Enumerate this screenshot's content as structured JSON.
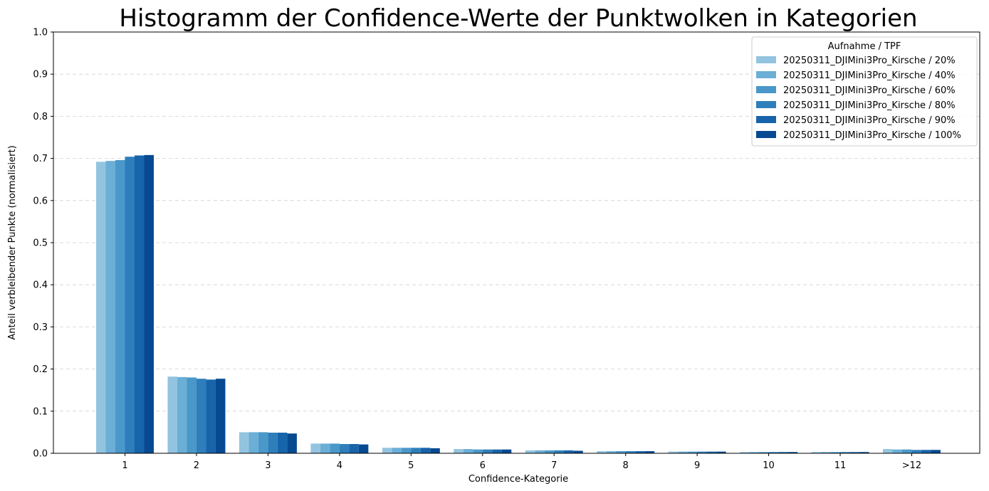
{
  "chart_data": {
    "type": "bar",
    "title": "Histogramm der Confidence-Werte der Punktwolken in Kategorien",
    "xlabel": "Confidence-Kategorie",
    "ylabel": "Anteil verbleibender Punkte (normalisiert)",
    "ylim": [
      0,
      1.0
    ],
    "yticks": [
      "0.0",
      "0.1",
      "0.2",
      "0.3",
      "0.4",
      "0.5",
      "0.6",
      "0.7",
      "0.8",
      "0.9",
      "1.0"
    ],
    "grid": "y-dashed",
    "legend": {
      "title": "Aufnahme / TPF",
      "placement": "top-right"
    },
    "categories": [
      "1",
      "2",
      "3",
      "4",
      "5",
      "6",
      "7",
      "8",
      "9",
      "10",
      "11",
      ">12"
    ],
    "series": [
      {
        "name": "20250311_DJIMini3Pro_Kirsche / 20%",
        "color": "#93c4df",
        "values": [
          0.692,
          0.182,
          0.05,
          0.023,
          0.013,
          0.01,
          0.007,
          0.005,
          0.004,
          0.003,
          0.003,
          0.01
        ]
      },
      {
        "name": "20250311_DJIMini3Pro_Kirsche / 40%",
        "color": "#6baed6",
        "values": [
          0.694,
          0.181,
          0.05,
          0.023,
          0.013,
          0.01,
          0.007,
          0.005,
          0.004,
          0.003,
          0.003,
          0.009
        ]
      },
      {
        "name": "20250311_DJIMini3Pro_Kirsche / 60%",
        "color": "#4a98c9",
        "values": [
          0.696,
          0.18,
          0.05,
          0.023,
          0.013,
          0.009,
          0.007,
          0.005,
          0.004,
          0.003,
          0.003,
          0.009
        ]
      },
      {
        "name": "20250311_DJIMini3Pro_Kirsche / 80%",
        "color": "#2e7ebc",
        "values": [
          0.704,
          0.177,
          0.049,
          0.022,
          0.013,
          0.009,
          0.007,
          0.005,
          0.004,
          0.003,
          0.003,
          0.008
        ]
      },
      {
        "name": "20250311_DJIMini3Pro_Kirsche / 90%",
        "color": "#1764ab",
        "values": [
          0.707,
          0.175,
          0.049,
          0.022,
          0.013,
          0.009,
          0.007,
          0.005,
          0.004,
          0.003,
          0.003,
          0.008
        ]
      },
      {
        "name": "20250311_DJIMini3Pro_Kirsche / 100%",
        "color": "#084a91",
        "values": [
          0.708,
          0.177,
          0.047,
          0.021,
          0.012,
          0.009,
          0.006,
          0.005,
          0.004,
          0.003,
          0.003,
          0.008
        ]
      }
    ]
  }
}
